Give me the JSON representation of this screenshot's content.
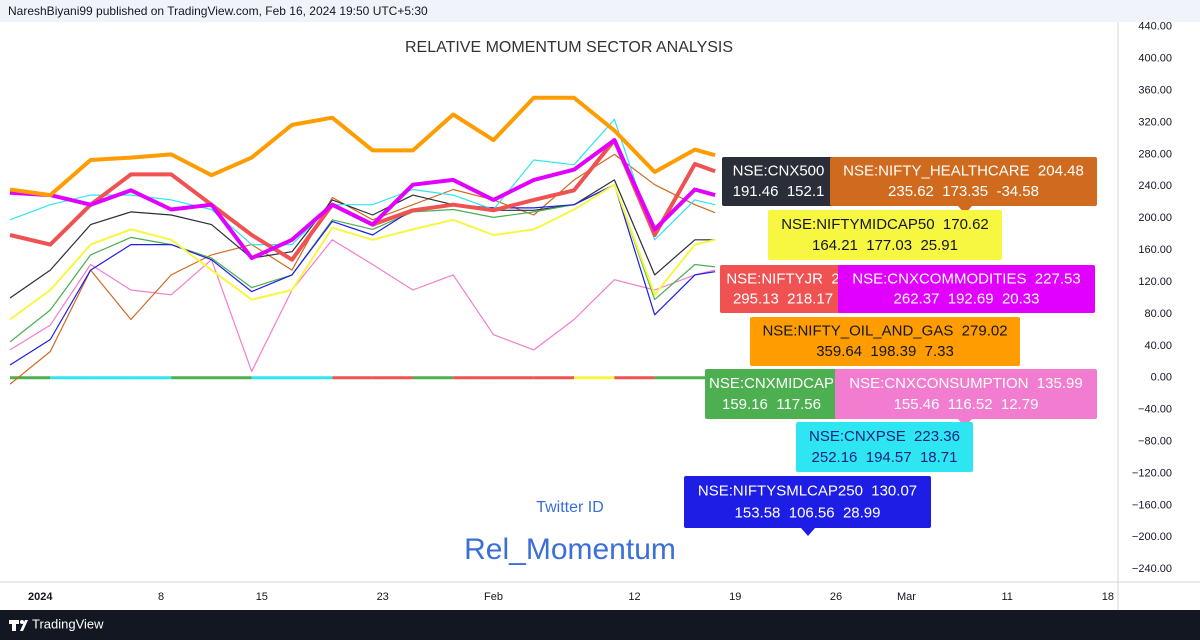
{
  "header": "NareshBiyani99 published on TradingView.com, Feb 16, 2024 19:50 UTC+5:30",
  "footer": "TradingView",
  "chart_data": {
    "type": "line",
    "title": "RELATIVE MOMENTUM SECTOR ANALYSIS",
    "annotations": [
      "Twitter ID",
      "Rel_Momentum"
    ],
    "x": [
      0,
      2,
      4,
      6,
      8,
      10,
      12,
      14,
      16,
      18,
      20,
      22,
      24,
      26,
      28,
      30,
      32,
      34,
      35
    ],
    "xlim": [
      0,
      55
    ],
    "xticks": [
      {
        "value": 1.5,
        "label": "2024"
      },
      {
        "value": 7.5,
        "label": "8"
      },
      {
        "value": 12.5,
        "label": "15"
      },
      {
        "value": 18.5,
        "label": "23"
      },
      {
        "value": 24,
        "label": "Feb"
      },
      {
        "value": 31,
        "label": "12"
      },
      {
        "value": 36,
        "label": "19"
      },
      {
        "value": 41,
        "label": "26"
      },
      {
        "value": 44.5,
        "label": "Mar"
      },
      {
        "value": 49.5,
        "label": "11"
      },
      {
        "value": 54.5,
        "label": "18"
      }
    ],
    "ylim": [
      -256,
      446
    ],
    "yticks": [
      {
        "value": 440,
        "label": "440.00"
      },
      {
        "value": 400,
        "label": "400.00"
      },
      {
        "value": 360,
        "label": "360.00"
      },
      {
        "value": 320,
        "label": "320.00"
      },
      {
        "value": 280,
        "label": "280.00"
      },
      {
        "value": 240,
        "label": "240.00"
      },
      {
        "value": 200,
        "label": "200.00"
      },
      {
        "value": 160,
        "label": "160.00"
      },
      {
        "value": 120,
        "label": "120.00"
      },
      {
        "value": 80,
        "label": "80.00"
      },
      {
        "value": 40,
        "label": "40.00"
      },
      {
        "value": 0,
        "label": "0.00"
      },
      {
        "value": -40,
        "label": "−40.00"
      },
      {
        "value": -80,
        "label": "−80.00"
      },
      {
        "value": -120,
        "label": "−120.00"
      },
      {
        "value": -160,
        "label": "−160.00"
      },
      {
        "value": -200,
        "label": "−200.00"
      },
      {
        "value": -240,
        "label": "−240.00"
      }
    ],
    "grid": false,
    "series": [
      {
        "color": "#2a2e39",
        "text_color": "#ffffff",
        "tag": [
          "NSE:CNX500",
          "191.46  152.1"
        ],
        "values": [
          100,
          135,
          192,
          208,
          204,
          192,
          150,
          158,
          223,
          204,
          229,
          217,
          210,
          210,
          217,
          248,
          129,
          173,
          173
        ]
      },
      {
        "color": "#cf6a1f",
        "text_color": "#ffffff",
        "tag": [
          "NSE:NIFTY_HEALTHCARE  204.48",
          "235.62  173.35  -34.58"
        ],
        "values": [
          -8,
          33,
          135,
          73,
          129,
          154,
          167,
          135,
          226,
          198,
          217,
          236,
          223,
          204,
          248,
          280,
          242,
          217,
          207
        ]
      },
      {
        "color": "#f7f741",
        "text_color": "#131722",
        "tag": [
          "NSE:NIFTYMIDCAP50  170.62",
          "164.21  177.03  25.91"
        ],
        "values": [
          73,
          110,
          167,
          186,
          173,
          135,
          98,
          110,
          188,
          173,
          186,
          198,
          179,
          186,
          211,
          242,
          104,
          167,
          173
        ]
      },
      {
        "color": "#f05252",
        "text_color": "#ffffff",
        "tag": [
          "NSE:NIFTYJR  2",
          "295.13  218.17"
        ],
        "values": [
          179,
          167,
          217,
          255,
          255,
          217,
          179,
          148,
          217,
          192,
          210,
          217,
          210,
          223,
          235,
          298,
          179,
          268,
          259
        ]
      },
      {
        "color": "#e100ff",
        "text_color": "#ffffff",
        "tag": [
          "NSE:CNXCOMMODITIES  227.53",
          "262.37  192.69  20.33"
        ],
        "values": [
          232,
          229,
          217,
          235,
          211,
          217,
          150,
          173,
          217,
          192,
          242,
          248,
          223,
          248,
          261,
          298,
          186,
          236,
          229
        ]
      },
      {
        "color": "#ff9c00",
        "text_color": "#131722",
        "tag": [
          "NSE:NIFTY_OIL_AND_GAS  279.02",
          "359.64  198.39  7.33"
        ],
        "values": [
          236,
          229,
          273,
          276,
          280,
          254,
          276,
          317,
          326,
          285,
          285,
          330,
          298,
          351,
          351,
          310,
          258,
          286,
          279
        ]
      },
      {
        "color": "#4caf50",
        "text_color": "#ffffff",
        "tag": [
          "NSE:CNXMIDCAP",
          "159.16  117.56"
        ],
        "values": [
          45,
          85,
          154,
          176,
          167,
          150,
          113,
          129,
          198,
          186,
          208,
          211,
          201,
          208,
          217,
          242,
          98,
          142,
          139
        ]
      },
      {
        "color": "#f27ccf",
        "text_color": "#ffffff",
        "tag": [
          "NSE:CNXCONSUMPTION  135.99",
          "155.46  116.52  12.79"
        ],
        "values": [
          35,
          66,
          142,
          110,
          104,
          148,
          8,
          110,
          173,
          142,
          110,
          129,
          54,
          35,
          73,
          123,
          110,
          129,
          135
        ]
      },
      {
        "color": "#2ee6f2",
        "text_color": "#1a237e",
        "tag": [
          "NSE:CNXPSE  223.36",
          "252.16  194.57  18.71"
        ],
        "values": [
          198,
          217,
          229,
          229,
          223,
          211,
          167,
          167,
          217,
          217,
          236,
          229,
          211,
          273,
          267,
          324,
          173,
          223,
          217
        ]
      },
      {
        "color": "#1d1de6",
        "text_color": "#ffffff",
        "tag": [
          "NSE:NIFTYSMLCAP250  130.07",
          "153.58  106.56  28.99"
        ],
        "values": [
          16,
          48,
          135,
          167,
          167,
          148,
          108,
          129,
          196,
          179,
          211,
          217,
          213,
          213,
          217,
          242,
          79,
          129,
          133
        ]
      }
    ],
    "leader": {
      "values": [
        0,
        0,
        0,
        0,
        0,
        0,
        0,
        0,
        0,
        0,
        0,
        0,
        0,
        0,
        0,
        0,
        0,
        0,
        0
      ],
      "colors": [
        "#4caf50",
        "#2ee6f2",
        "#2ee6f2",
        "#2ee6f2",
        "#4caf50",
        "#4caf50",
        "#2ee6f2",
        "#2ee6f2",
        "#f05252",
        "#f05252",
        "#4caf50",
        "#f05252",
        "#f05252",
        "#f05252",
        "#f7f741",
        "#f05252",
        "#4caf50",
        "#4caf50"
      ]
    }
  }
}
